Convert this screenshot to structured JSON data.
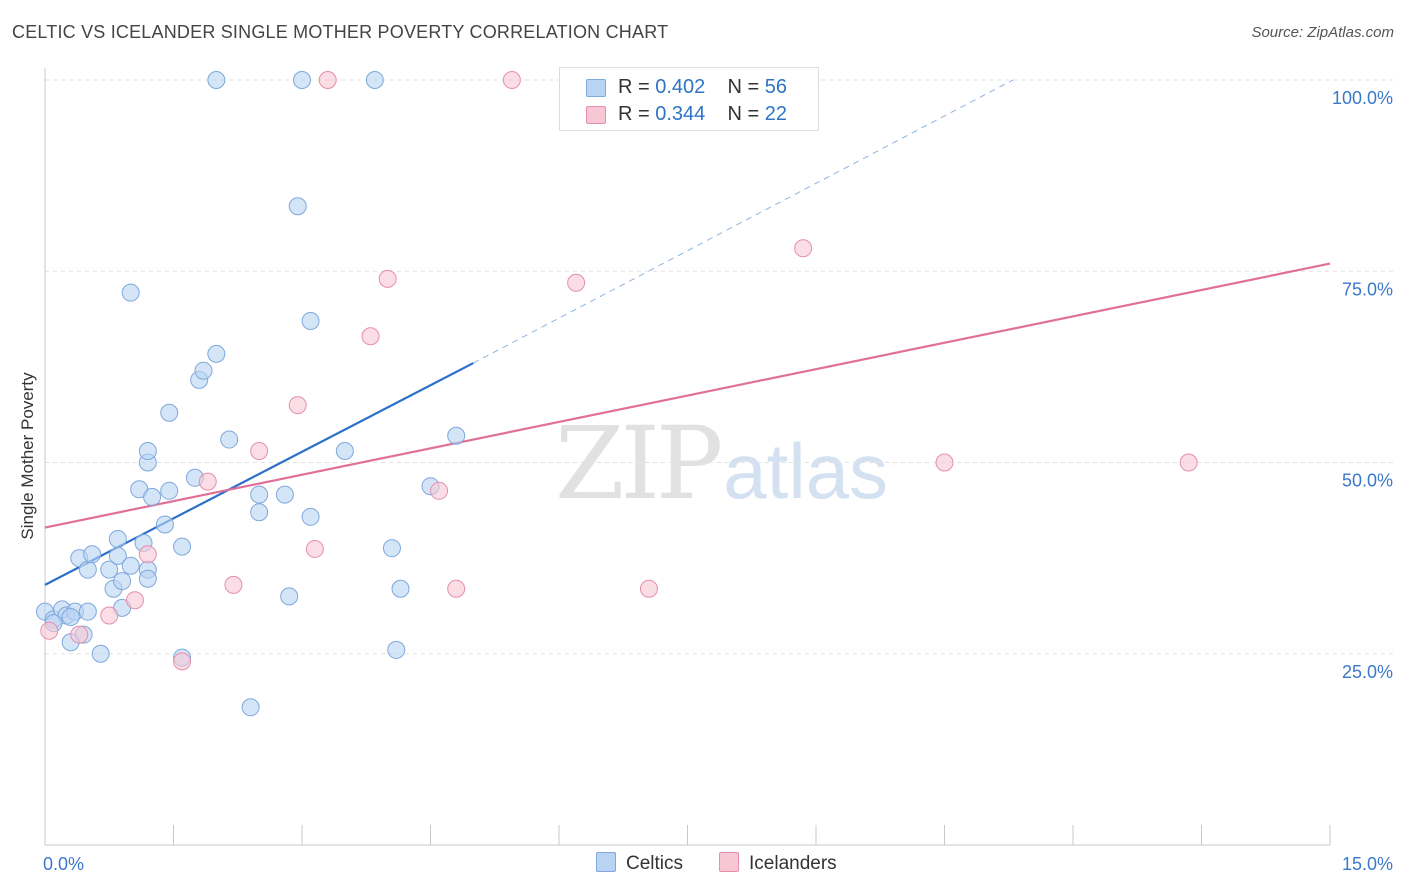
{
  "header": {
    "title": "CELTIC VS ICELANDER SINGLE MOTHER POVERTY CORRELATION CHART",
    "source": "Source: ZipAtlas.com"
  },
  "legend": {
    "rows": [
      {
        "r_label": "R =",
        "r_value": "0.402",
        "n_label": "N =",
        "n_value": "56"
      },
      {
        "r_label": "R =",
        "r_value": "0.344",
        "n_label": "N =",
        "n_value": "22"
      }
    ]
  },
  "bottom_legend": {
    "celtics": "Celtics",
    "icelanders": "Icelanders"
  },
  "watermark": {
    "zip": "ZIP",
    "atlas": "atlas"
  },
  "chart_data": {
    "type": "scatter",
    "title": "CELTIC VS ICELANDER SINGLE MOTHER POVERTY CORRELATION CHART",
    "xlabel": "",
    "ylabel": "Single Mother Poverty",
    "xlim": [
      0,
      15
    ],
    "ylim": [
      0,
      100
    ],
    "x_tick_labels": [
      "0.0%",
      "15.0%"
    ],
    "y_ticks": [
      25,
      50,
      75,
      100
    ],
    "y_tick_labels": [
      "25.0%",
      "50.0%",
      "75.0%",
      "100.0%"
    ],
    "grid": true,
    "legend_position": "top-center",
    "colors": {
      "celtics_fill": "#b9d3f3",
      "celtics_stroke": "#7fa8dc",
      "celtics_line": "#2b70c9",
      "icelanders_fill": "#f8c7d6",
      "icelanders_stroke": "#e58fab",
      "icelanders_line": "#e0709a",
      "tick_text": "#3b78c8"
    },
    "series": [
      {
        "name": "Celtics",
        "r": 0.402,
        "n": 56,
        "points": [
          [
            0.0,
            30.5
          ],
          [
            0.1,
            29.5
          ],
          [
            0.2,
            30.8
          ],
          [
            0.25,
            30.0
          ],
          [
            0.35,
            30.5
          ],
          [
            0.45,
            27.5
          ],
          [
            0.3,
            26.5
          ],
          [
            0.5,
            30.5
          ],
          [
            0.65,
            25.0
          ],
          [
            0.8,
            33.5
          ],
          [
            0.9,
            31.0
          ],
          [
            0.4,
            37.5
          ],
          [
            0.5,
            36.0
          ],
          [
            0.55,
            38.0
          ],
          [
            0.75,
            36.0
          ],
          [
            0.85,
            37.8
          ],
          [
            0.9,
            34.5
          ],
          [
            0.85,
            40.0
          ],
          [
            1.0,
            36.5
          ],
          [
            1.15,
            39.5
          ],
          [
            1.2,
            36.0
          ],
          [
            1.2,
            34.8
          ],
          [
            1.1,
            46.5
          ],
          [
            1.25,
            45.5
          ],
          [
            1.45,
            46.3
          ],
          [
            1.4,
            41.9
          ],
          [
            1.6,
            39.0
          ],
          [
            1.75,
            48.0
          ],
          [
            1.2,
            50.0
          ],
          [
            1.2,
            51.5
          ],
          [
            1.45,
            56.5
          ],
          [
            1.8,
            60.8
          ],
          [
            1.85,
            62.0
          ],
          [
            2.0,
            64.2
          ],
          [
            1.6,
            24.5
          ],
          [
            2.15,
            53.0
          ],
          [
            2.5,
            43.5
          ],
          [
            2.8,
            45.8
          ],
          [
            2.85,
            32.5
          ],
          [
            3.1,
            42.9
          ],
          [
            2.5,
            45.8
          ],
          [
            3.5,
            51.5
          ],
          [
            3.1,
            68.5
          ],
          [
            2.95,
            83.5
          ],
          [
            4.05,
            38.8
          ],
          [
            4.15,
            33.5
          ],
          [
            4.5,
            46.9
          ],
          [
            4.8,
            53.5
          ],
          [
            1.0,
            72.2
          ],
          [
            2.4,
            18.0
          ],
          [
            4.1,
            25.5
          ],
          [
            2.0,
            100.0
          ],
          [
            3.0,
            100.0
          ],
          [
            3.85,
            100.0
          ],
          [
            0.1,
            29.0
          ],
          [
            0.3,
            29.8
          ]
        ]
      },
      {
        "name": "Icelanders",
        "r": 0.344,
        "n": 22,
        "points": [
          [
            0.05,
            28.0
          ],
          [
            0.4,
            27.5
          ],
          [
            0.75,
            30.0
          ],
          [
            1.05,
            32.0
          ],
          [
            1.2,
            38.0
          ],
          [
            1.6,
            24.0
          ],
          [
            1.9,
            47.5
          ],
          [
            2.2,
            34.0
          ],
          [
            2.5,
            51.5
          ],
          [
            2.95,
            57.5
          ],
          [
            3.15,
            38.7
          ],
          [
            3.8,
            66.5
          ],
          [
            4.0,
            74.0
          ],
          [
            4.6,
            46.3
          ],
          [
            4.8,
            33.5
          ],
          [
            6.2,
            73.5
          ],
          [
            7.05,
            33.5
          ],
          [
            8.85,
            78.0
          ],
          [
            10.5,
            50.0
          ],
          [
            13.35,
            50.0
          ],
          [
            3.3,
            100.0
          ],
          [
            5.45,
            100.0
          ]
        ]
      }
    ],
    "trendlines": [
      {
        "series": "Celtics",
        "from": [
          0.0,
          34.0
        ],
        "to": [
          5.0,
          63.0
        ],
        "dashed_to": [
          11.3,
          100.0
        ]
      },
      {
        "series": "Icelanders",
        "from": [
          0.0,
          41.5
        ],
        "to": [
          15.0,
          76.0
        ]
      }
    ]
  }
}
